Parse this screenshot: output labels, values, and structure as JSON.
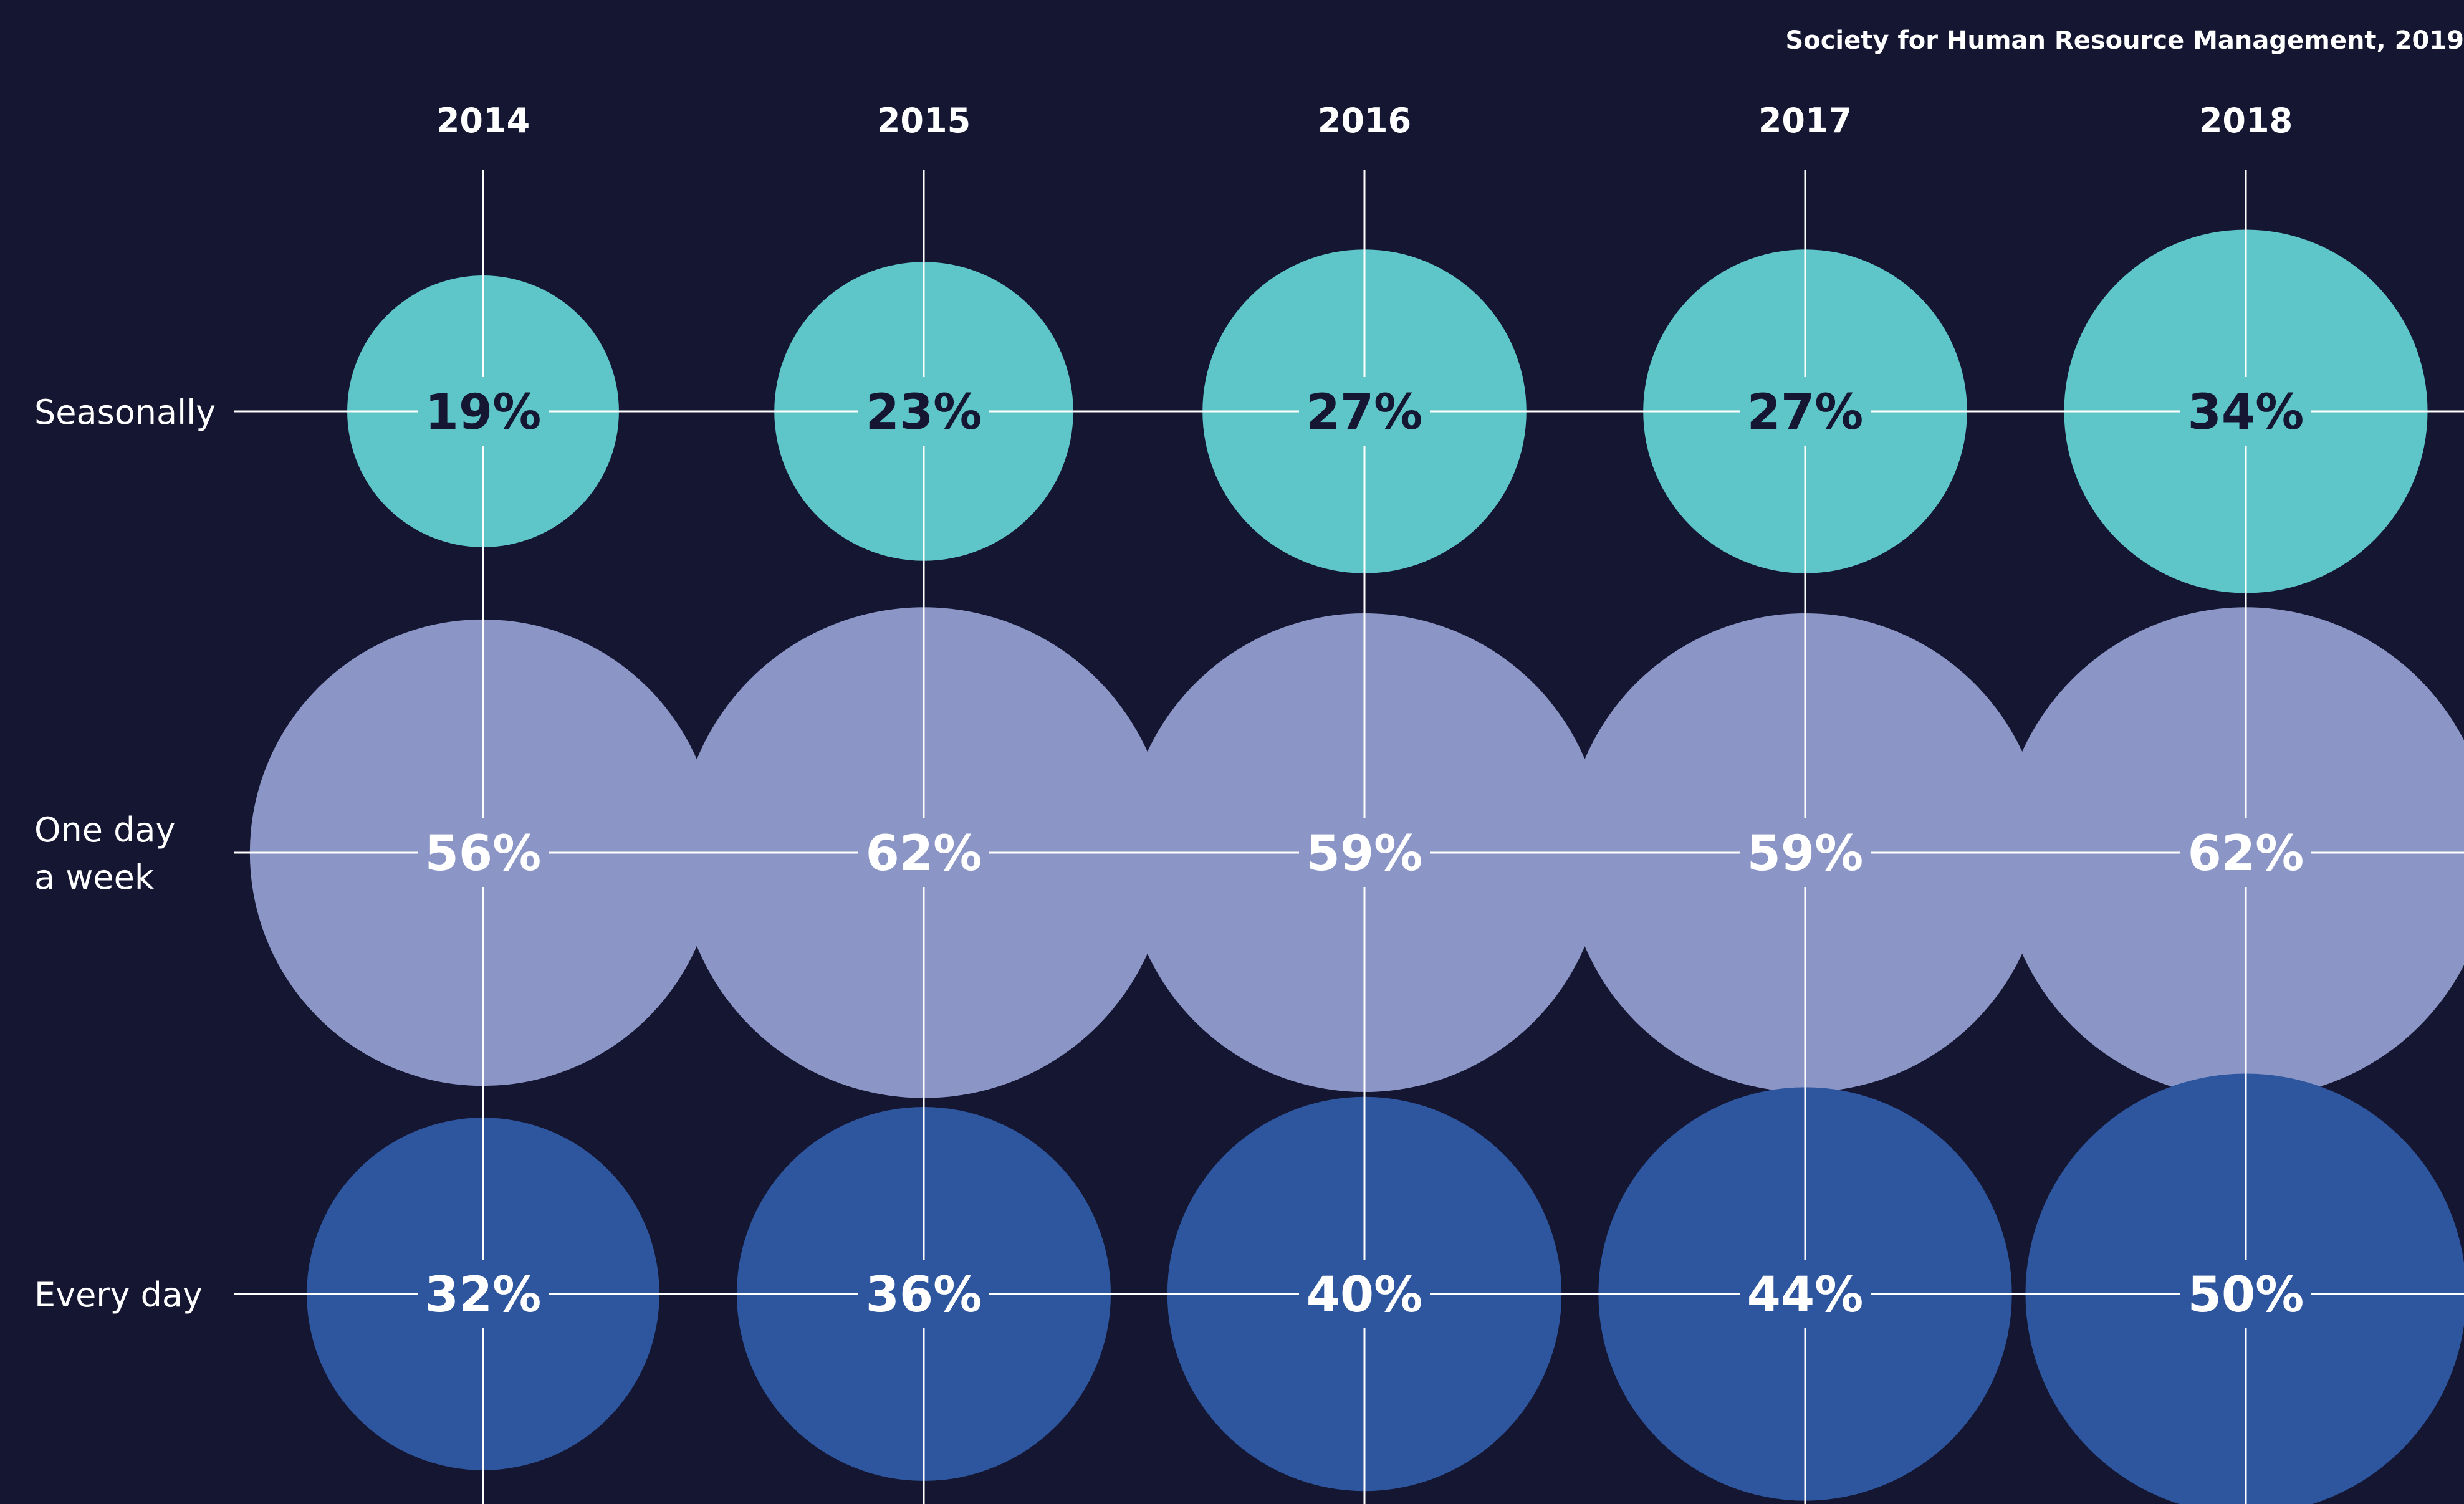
{
  "source": "Society for Human Resource Management, 2019",
  "chart_data": {
    "type": "bubble-matrix",
    "title": "",
    "source": "Society for Human Resource Management, 2019",
    "categories": [
      "2014",
      "2015",
      "2016",
      "2017",
      "2018"
    ],
    "value_unit": "%",
    "series": [
      {
        "name": "Seasonally",
        "label_lines": [
          "Seasonally"
        ],
        "color": "#5ec5c8",
        "text_color": "#141632",
        "values": [
          19,
          23,
          27,
          27,
          34
        ]
      },
      {
        "name": "One day a week",
        "label_lines": [
          "One day",
          "a week"
        ],
        "color": "#8b96c7",
        "text_color": "#ffffff",
        "values": [
          56,
          62,
          59,
          59,
          62
        ]
      },
      {
        "name": "Every day",
        "label_lines": [
          "Every day"
        ],
        "color": "#2e569f",
        "text_color": "#ffffff",
        "values": [
          32,
          36,
          40,
          44,
          50
        ]
      }
    ],
    "grid": true,
    "legend": "none"
  }
}
